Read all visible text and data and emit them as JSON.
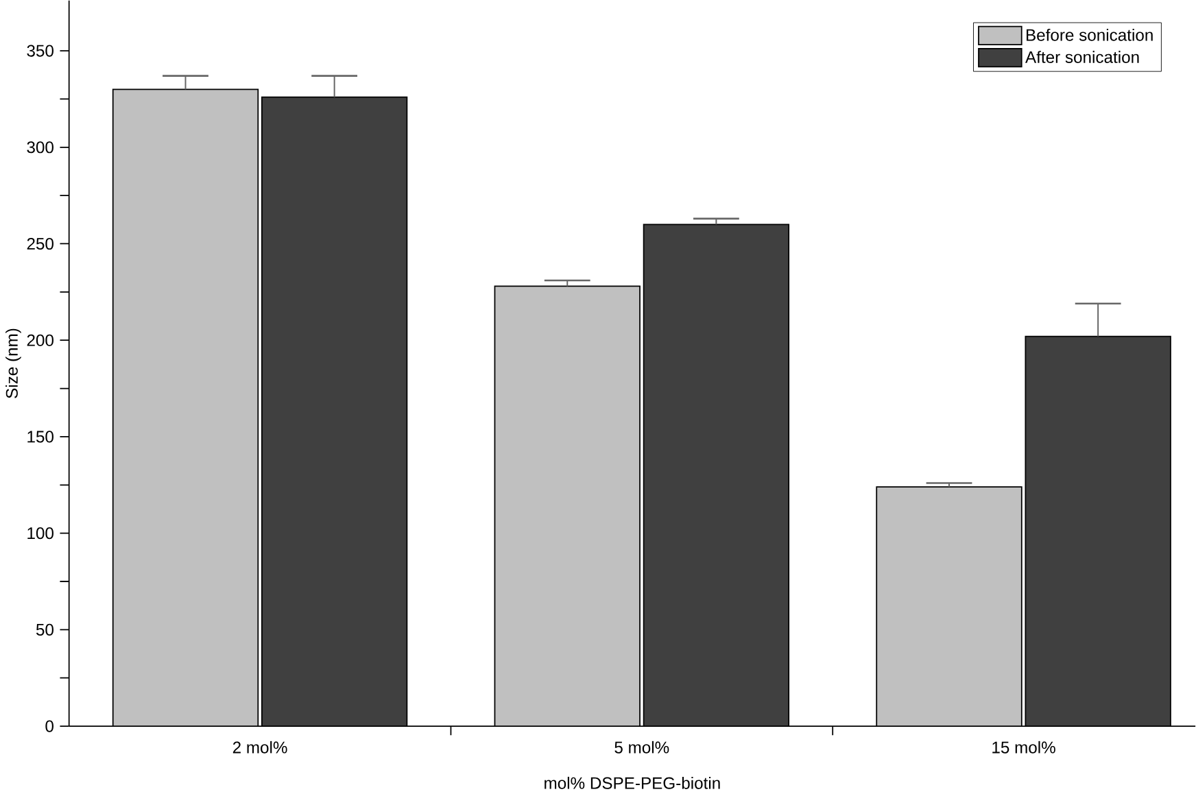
{
  "chart_data": {
    "type": "bar",
    "xlabel": "mol% DSPE-PEG-biotin",
    "ylabel": "Size (nm)",
    "categories": [
      "2 mol%",
      "5 mol%",
      "15 mol%"
    ],
    "series": [
      {
        "name": "Before sonication",
        "color": "#c0c0c0",
        "values": [
          330,
          228,
          124
        ],
        "errors": [
          [
            330,
            337
          ],
          [
            228,
            231
          ],
          [
            124,
            126
          ]
        ]
      },
      {
        "name": "After sonication",
        "color": "#404040",
        "values": [
          326,
          260,
          202
        ],
        "errors": [
          [
            326,
            337
          ],
          [
            260,
            263
          ],
          [
            202,
            219
          ]
        ]
      }
    ],
    "ylim": [
      0,
      376
    ],
    "yticks": [
      0,
      50,
      100,
      150,
      200,
      250,
      300,
      350
    ],
    "legend": "top right",
    "grid": false
  }
}
